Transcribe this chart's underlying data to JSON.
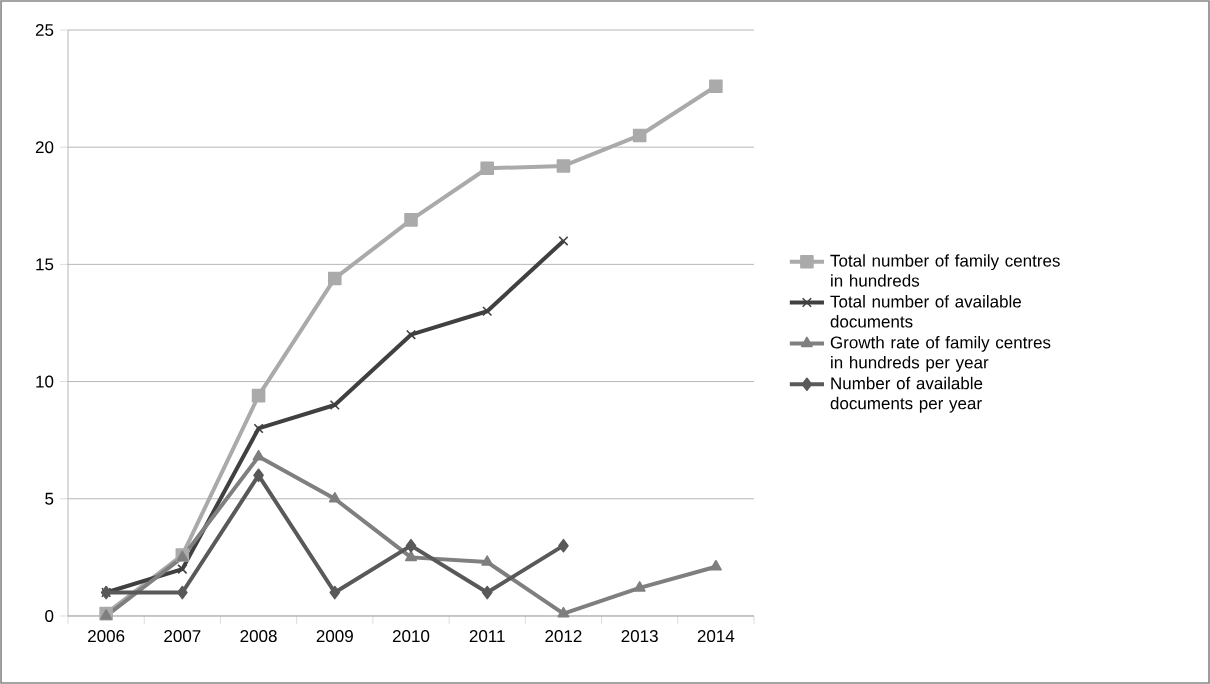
{
  "chart_data": {
    "type": "line",
    "categories": [
      "2006",
      "2007",
      "2008",
      "2009",
      "2010",
      "2011",
      "2012",
      "2013",
      "2014"
    ],
    "series": [
      {
        "name": "Total number of family centres in hundreds",
        "color": "#aaaaaa",
        "marker": "square",
        "values": [
          0.1,
          2.6,
          9.4,
          14.4,
          16.9,
          19.1,
          19.2,
          20.5,
          22.6
        ]
      },
      {
        "name": "Total number of available documents",
        "color": "#404040",
        "marker": "cross",
        "values": [
          1,
          2,
          8,
          9,
          12,
          13,
          16,
          null,
          null
        ]
      },
      {
        "name": "Growth rate of family centres in hundreds per year",
        "color": "#7f7f7f",
        "marker": "triangle",
        "values": [
          0,
          2.5,
          6.8,
          5,
          2.5,
          2.3,
          0.1,
          1.2,
          2.1
        ]
      },
      {
        "name": "Number of available documents per year",
        "color": "#595959",
        "marker": "diamond",
        "values": [
          1,
          1,
          6,
          1,
          3,
          1,
          3,
          null,
          null
        ]
      }
    ],
    "ylim": [
      0,
      25
    ],
    "yticks": [
      0,
      5,
      10,
      15,
      20,
      25
    ],
    "grid": "y",
    "legend": "right"
  }
}
